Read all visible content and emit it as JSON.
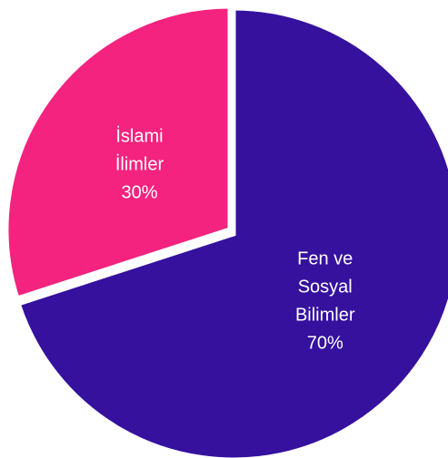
{
  "chart_data": {
    "type": "pie",
    "start_angle_deg": 0,
    "direction": "clockwise",
    "slices": [
      {
        "label": "Fen ve Sosyal Bilimler",
        "label_lines": [
          "Fen ve",
          "Sosyal",
          "Bilimler",
          "70%"
        ],
        "value": 70,
        "value_label": "70%",
        "color": "#35119E"
      },
      {
        "label": "İslami İlimler",
        "label_lines": [
          "İslami",
          "İlimler",
          "30%"
        ],
        "value": 30,
        "value_label": "30%",
        "color": "#F4237F"
      }
    ],
    "slice_separator_color": "#ffffff"
  }
}
